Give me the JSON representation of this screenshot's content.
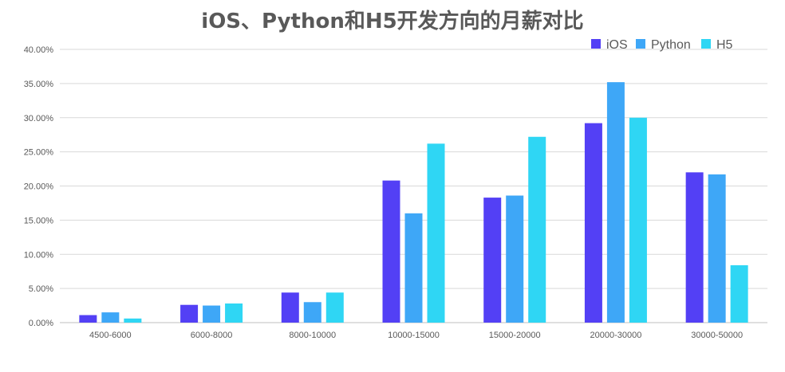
{
  "chart_data": {
    "type": "bar",
    "title": "iOS、Python和H5开发方向的月薪对比",
    "xlabel": "",
    "ylabel": "",
    "ylim": [
      0,
      40
    ],
    "y_ticks": [
      "0.00%",
      "5.00%",
      "10.00%",
      "15.00%",
      "20.00%",
      "25.00%",
      "30.00%",
      "35.00%",
      "40.00%"
    ],
    "y_tick_values": [
      0,
      5,
      10,
      15,
      20,
      25,
      30,
      35,
      40
    ],
    "grid": true,
    "legend_position": "top-right",
    "categories": [
      "4500-6000",
      "6000-8000",
      "8000-10000",
      "10000-15000",
      "15000-20000",
      "20000-30000",
      "30000-50000"
    ],
    "series": [
      {
        "name": "iOS",
        "color": "#5340f5",
        "values": [
          1.1,
          2.6,
          4.4,
          20.8,
          18.3,
          29.2,
          22.0
        ]
      },
      {
        "name": "Python",
        "color": "#3ea7f7",
        "values": [
          1.5,
          2.5,
          3.0,
          16.0,
          18.6,
          35.2,
          21.7
        ]
      },
      {
        "name": "H5",
        "color": "#2fd6f4",
        "values": [
          0.6,
          2.8,
          4.4,
          26.2,
          27.2,
          30.0,
          8.4
        ]
      }
    ]
  }
}
